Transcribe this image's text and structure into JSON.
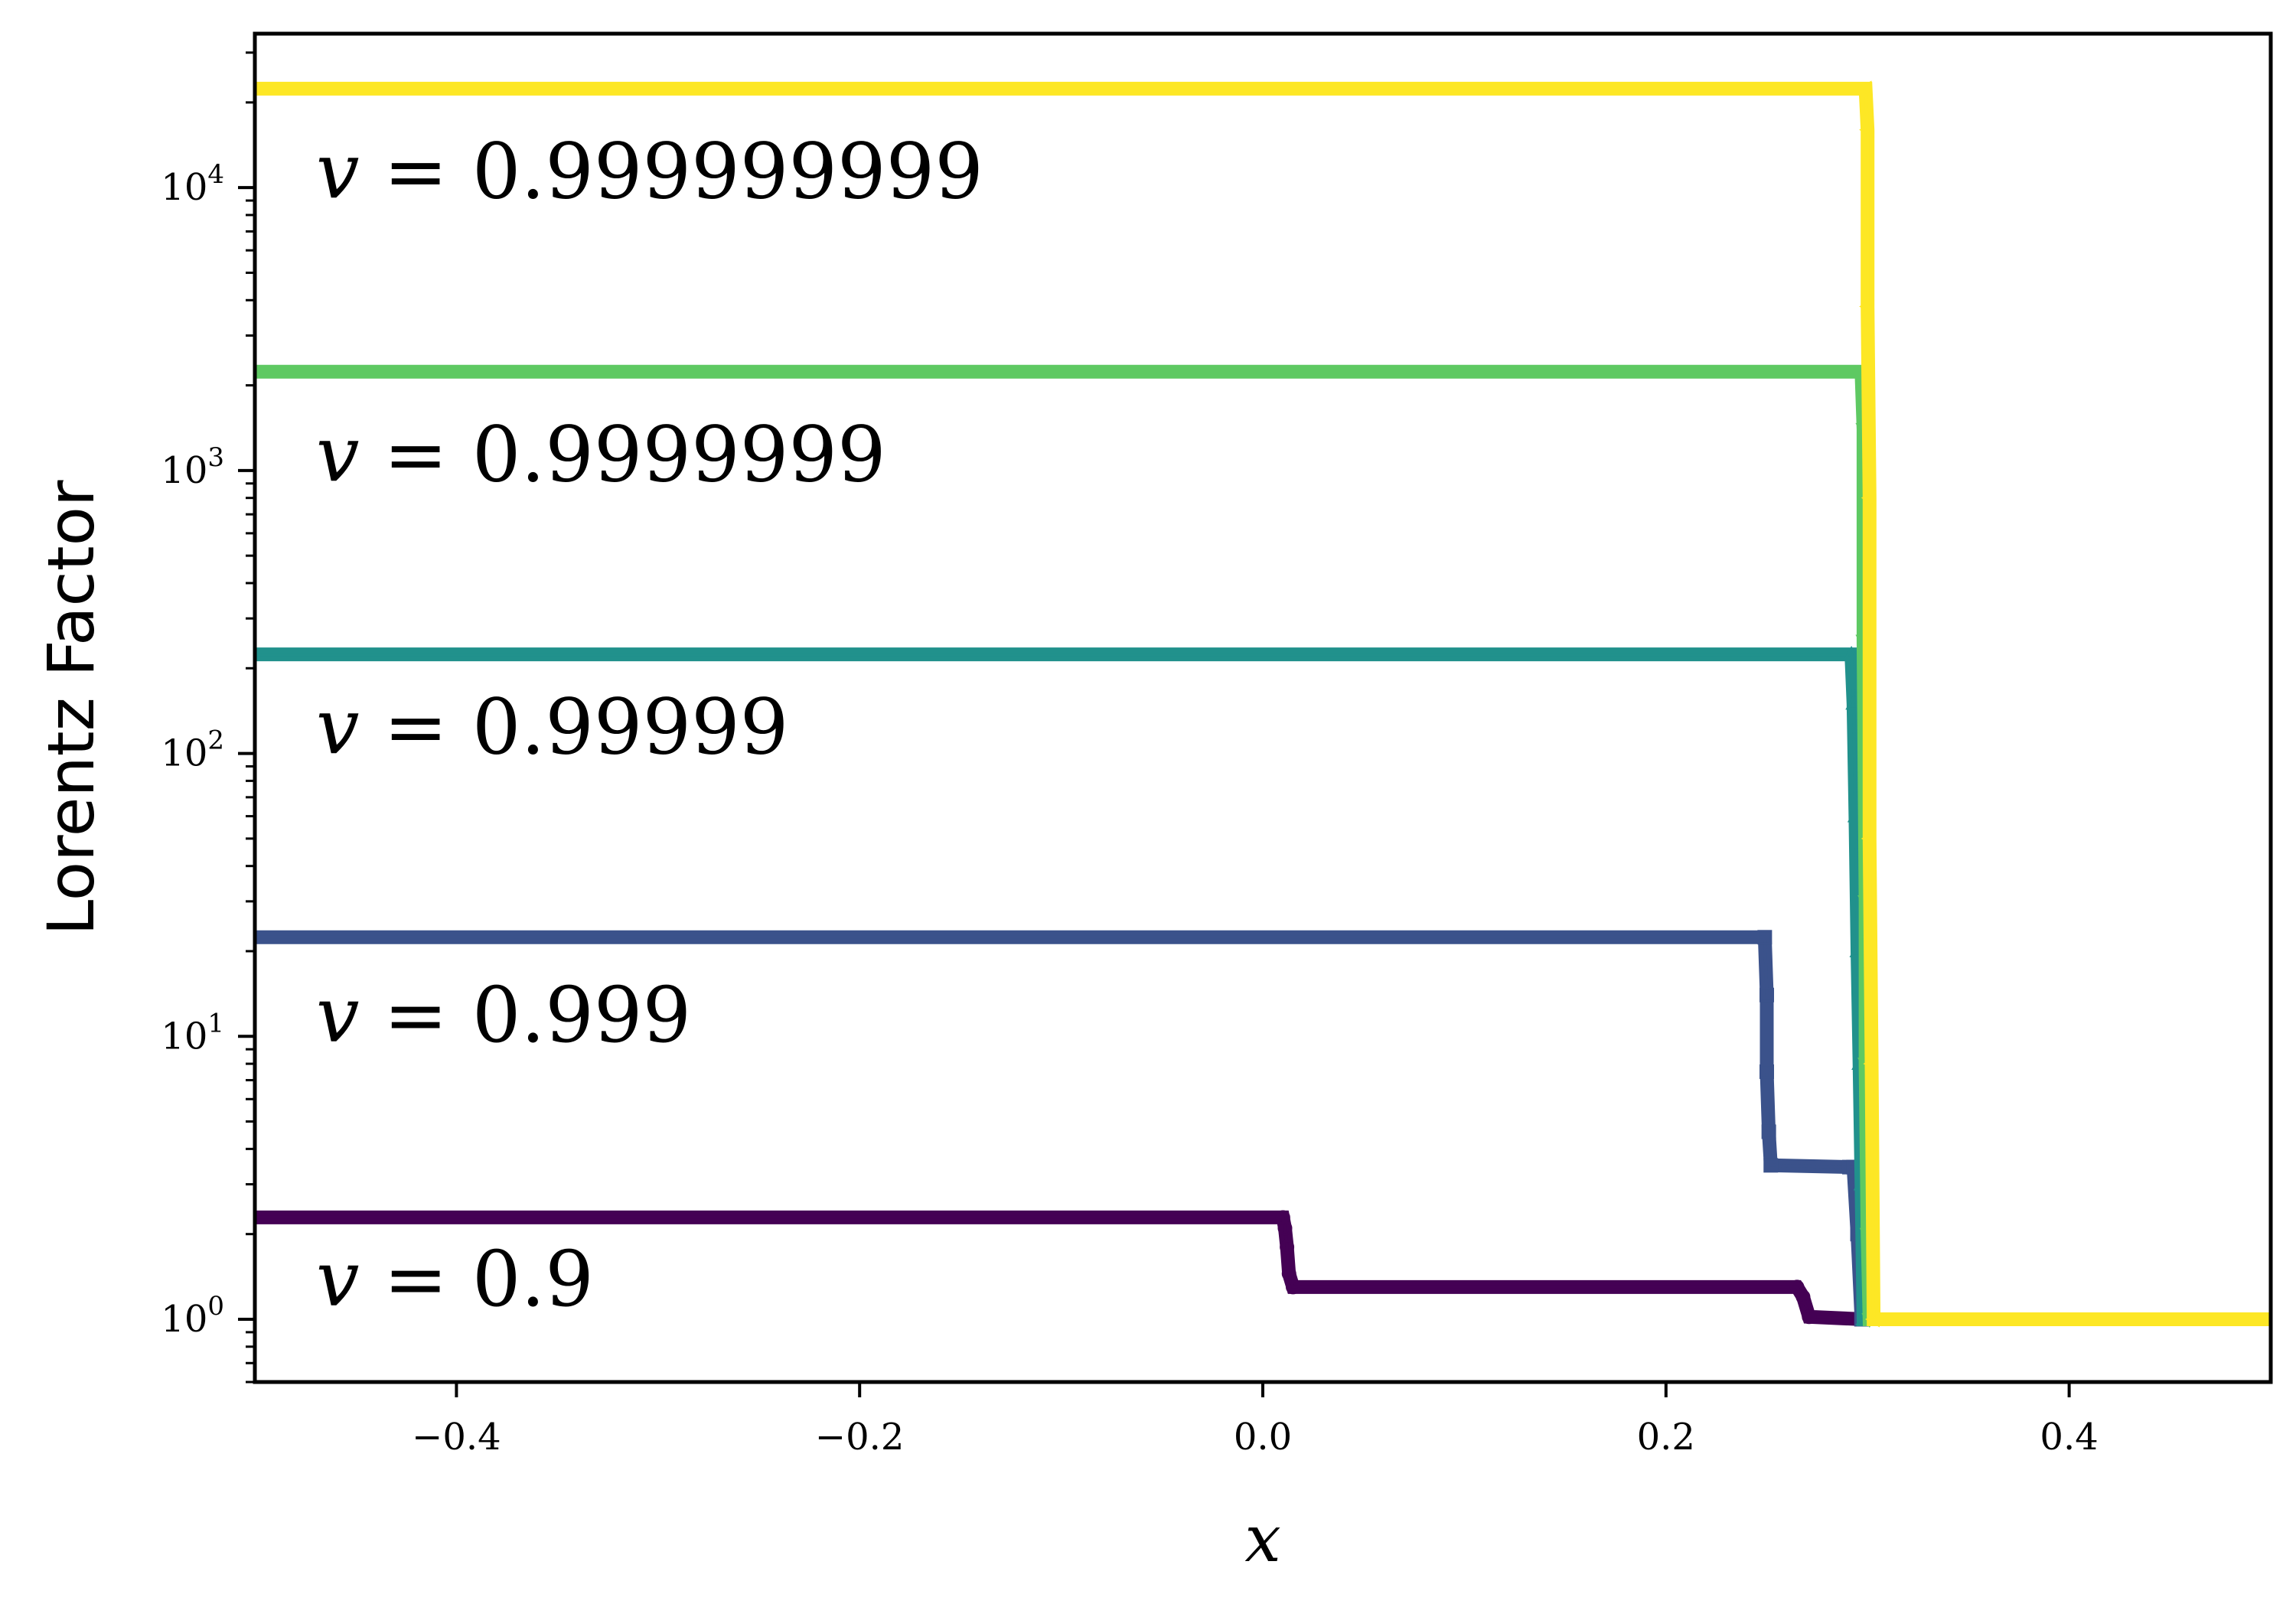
{
  "chart_data": {
    "type": "line",
    "xlabel": "x",
    "ylabel": "Lorentz Factor",
    "xlim": [
      -0.5,
      0.5
    ],
    "ylim": [
      0.6,
      35000
    ],
    "yscale": "log",
    "grid": false,
    "x_ticks": [
      -0.4,
      -0.2,
      0.0,
      0.2,
      0.4
    ],
    "x_tick_labels": [
      "−0.4",
      "−0.2",
      "0.0",
      "0.2",
      "0.4"
    ],
    "y_ticks": [
      1,
      10,
      100,
      1000,
      10000
    ],
    "y_tick_labels": [
      {
        "base": "10",
        "exp": "0"
      },
      {
        "base": "10",
        "exp": "1"
      },
      {
        "base": "10",
        "exp": "2"
      },
      {
        "base": "10",
        "exp": "3"
      },
      {
        "base": "10",
        "exp": "4"
      }
    ],
    "series": [
      {
        "label": "v = 0.9",
        "label_var": "v",
        "label_rest": " = 0.9",
        "color": "#440154",
        "marker": "circle",
        "label_y": 1.4,
        "x": [
          -0.5,
          0.01,
          0.011,
          0.012,
          0.013,
          0.015,
          0.265,
          0.268,
          0.271,
          0.298,
          0.5
        ],
        "y": [
          2.29,
          2.29,
          2.1,
          1.8,
          1.45,
          1.3,
          1.3,
          1.2,
          1.02,
          1.0,
          1.0
        ]
      },
      {
        "label": "v = 0.999",
        "label_var": "v",
        "label_rest": " = 0.999",
        "color": "#3b528b",
        "marker": "square",
        "label_y": 12,
        "x": [
          -0.5,
          0.249,
          0.25,
          0.25,
          0.251,
          0.252,
          0.291,
          0.293,
          0.295,
          0.297,
          0.5
        ],
        "y": [
          22.4,
          22.4,
          14,
          7.5,
          4.6,
          3.5,
          3.45,
          3.45,
          2.0,
          1.0,
          1.0
        ]
      },
      {
        "label": "v = 0.99999",
        "label_var": "v",
        "label_rest": " = 0.99999",
        "color": "#21918c",
        "marker": "triangle-up",
        "label_y": 125,
        "x": [
          -0.5,
          0.292,
          0.293,
          0.294,
          0.295,
          0.296,
          0.297,
          0.298,
          0.5
        ],
        "y": [
          224,
          224,
          150,
          60,
          20,
          8,
          3,
          1.0,
          1.0
        ]
      },
      {
        "label": "v = 0.9999999",
        "label_var": "v",
        "label_rest": " = 0.9999999",
        "color": "#5ec962",
        "marker": "triangle-down",
        "label_y": 1150,
        "x": [
          -0.5,
          0.297,
          0.298,
          0.298,
          0.299,
          0.299,
          0.3,
          0.301,
          0.5
        ],
        "y": [
          2236,
          2236,
          1400,
          250,
          30,
          8,
          2,
          1.0,
          1.0
        ]
      },
      {
        "label": "v = 0.999999999",
        "label_var": "v",
        "label_rest": " = 0.999999999",
        "color": "#fde725",
        "marker": "triangle-left",
        "label_y": 11500,
        "x": [
          -0.5,
          0.299,
          0.3,
          0.3,
          0.301,
          0.301,
          0.302,
          0.303,
          0.5
        ],
        "y": [
          22361,
          22361,
          16000,
          3800,
          800,
          50,
          8,
          1.0,
          1.0
        ]
      }
    ]
  }
}
